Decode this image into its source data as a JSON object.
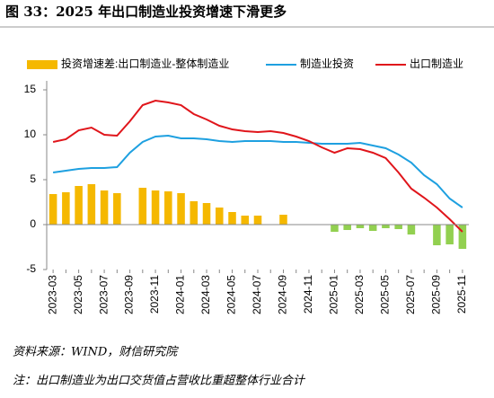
{
  "chart_data": {
    "type": "combo",
    "title": "图 33：2025 年出口制造业投资增速下滑更多",
    "source": "资料来源：WIND，财信研究院",
    "note": "注：出口制造业为出口交货值占营收比重超整体行业合计",
    "categories": [
      "2023-03",
      null,
      "2023-05",
      null,
      "2023-07",
      null,
      "2023-09",
      null,
      "2023-11",
      null,
      "2024-01",
      null,
      "2024-03",
      null,
      "2024-05",
      null,
      "2024-07",
      null,
      "2024-09",
      null,
      "2024-11",
      null,
      "2025-01",
      null,
      "2025-03",
      null,
      "2025-05",
      null,
      "2025-07",
      null,
      "2025-09",
      null,
      "2025-11"
    ],
    "series": [
      {
        "name": "投资增速差:出口制造业-整体制造业",
        "type": "bar",
        "color": "#f5b800",
        "negative_color": "#92d050",
        "values": [
          3.4,
          3.6,
          4.3,
          4.5,
          3.8,
          3.5,
          0,
          4.1,
          3.8,
          3.7,
          3.5,
          2.6,
          2.4,
          1.9,
          1.4,
          1.0,
          1.0,
          0,
          1.1,
          0,
          0,
          0,
          -0.8,
          -0.6,
          -0.4,
          -0.7,
          -0.4,
          -0.5,
          -1.1,
          0,
          -2.3,
          -2.2,
          -2.7
        ]
      },
      {
        "name": "制造业投资",
        "type": "line",
        "color": "#1ea0e0",
        "values": [
          5.8,
          6.0,
          6.2,
          6.3,
          6.3,
          6.4,
          8.0,
          9.2,
          9.8,
          9.9,
          9.6,
          9.6,
          9.5,
          9.3,
          9.2,
          9.3,
          9.3,
          9.3,
          9.2,
          9.2,
          9.1,
          9.0,
          9.0,
          9.0,
          9.1,
          8.8,
          8.5,
          7.8,
          6.9,
          5.5,
          4.5,
          2.9,
          1.9
        ]
      },
      {
        "name": "出口制造业",
        "type": "line",
        "color": "#e0151b",
        "values": [
          9.2,
          9.5,
          10.5,
          10.8,
          10.0,
          9.9,
          11.5,
          13.3,
          13.8,
          13.6,
          13.3,
          12.3,
          11.7,
          11.0,
          10.6,
          10.4,
          10.3,
          10.4,
          10.2,
          9.8,
          9.3,
          8.6,
          8.0,
          8.5,
          8.4,
          8.0,
          7.4,
          5.8,
          4.0,
          3.0,
          1.9,
          0.6,
          -0.8
        ]
      }
    ],
    "ylim": [
      -5,
      16
    ],
    "yticks": [
      -5,
      0,
      5,
      10,
      15
    ]
  }
}
